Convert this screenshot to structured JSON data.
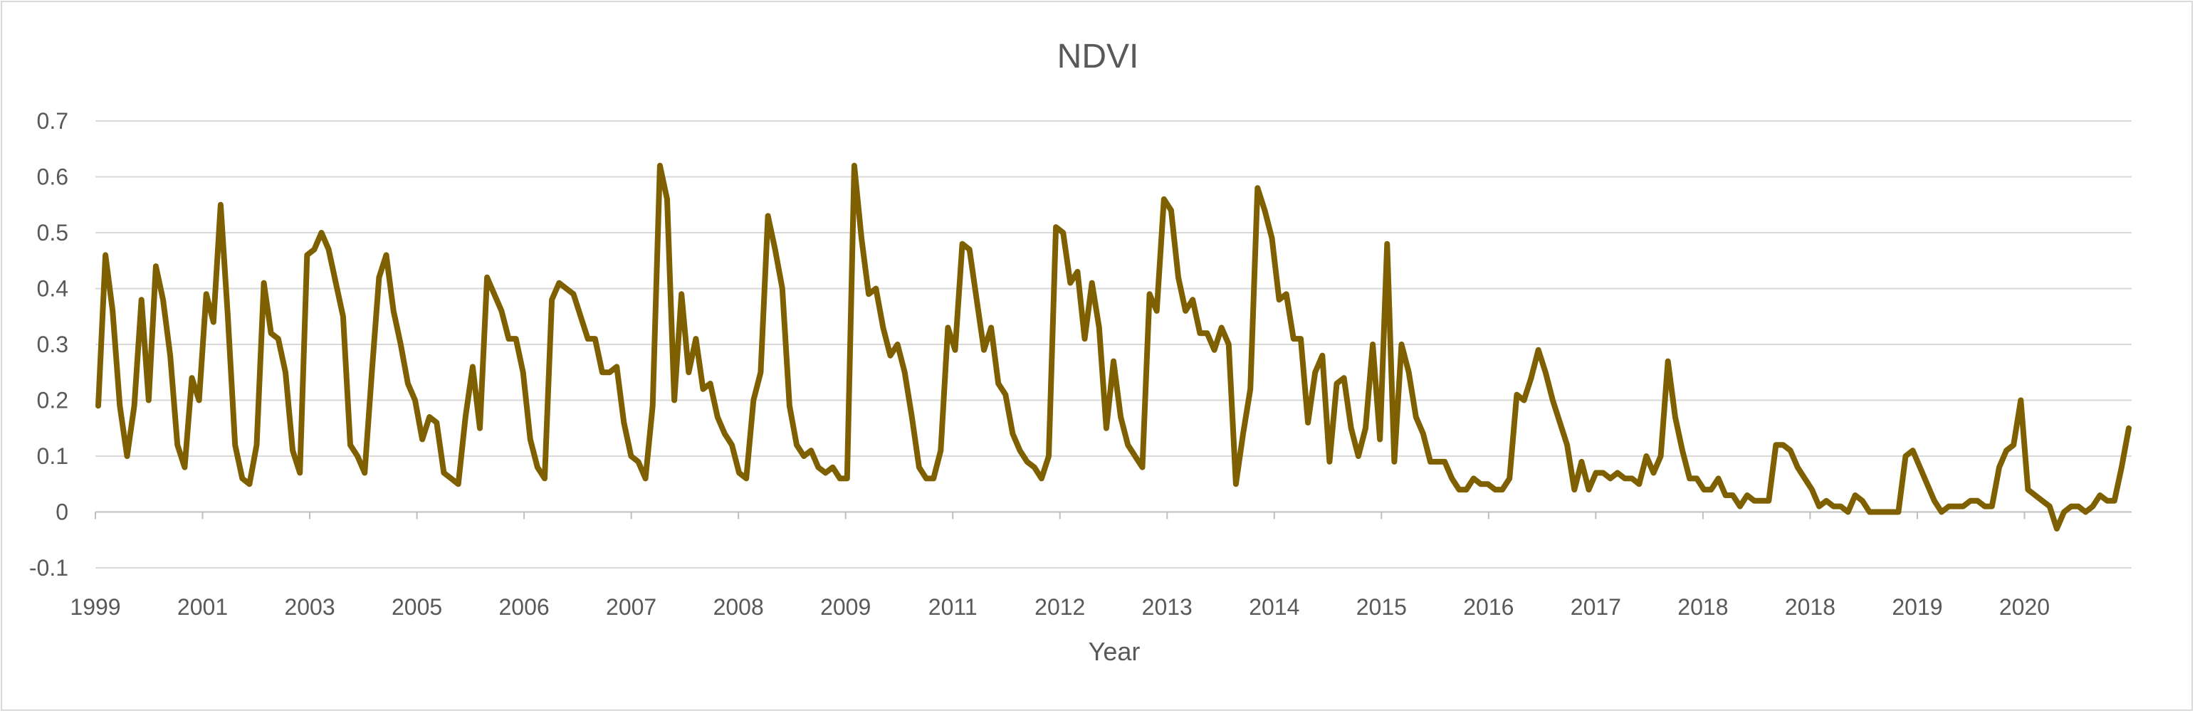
{
  "chart_data": {
    "type": "line",
    "title": "NDVI",
    "xlabel": "Year",
    "ylabel": "",
    "ylim": [
      -0.1,
      0.7
    ],
    "yticks": [
      -0.1,
      0,
      0.1,
      0.2,
      0.3,
      0.4,
      0.5,
      0.6,
      0.7
    ],
    "ytick_labels": [
      "-0.1",
      "0",
      "0.1",
      "0.2",
      "0.3",
      "0.4",
      "0.5",
      "0.6",
      "0.7"
    ],
    "xtick_labels": [
      "1999",
      "2001",
      "2003",
      "2005",
      "2006",
      "2007",
      "2008",
      "2009",
      "2011",
      "2012",
      "2013",
      "2014",
      "2015",
      "2016",
      "2017",
      "2018",
      "2018",
      "2019",
      "2020"
    ],
    "grid": true,
    "legend": "none",
    "line_color": "#7f6000",
    "series": [
      {
        "values": [
          0.19,
          0.46,
          0.36,
          0.19,
          0.1,
          0.19,
          0.38,
          0.2,
          0.44,
          0.38,
          0.28,
          0.12,
          0.08,
          0.24,
          0.2,
          0.39,
          0.34,
          0.55,
          0.35,
          0.12,
          0.06,
          0.05,
          0.12,
          0.41,
          0.32,
          0.31,
          0.25,
          0.11,
          0.07,
          0.46,
          0.47,
          0.5,
          0.47,
          0.41,
          0.35,
          0.12,
          0.1,
          0.07,
          0.25,
          0.42,
          0.46,
          0.36,
          0.3,
          0.23,
          0.2,
          0.13,
          0.17,
          0.16,
          0.07,
          0.06,
          0.05,
          0.17,
          0.26,
          0.15,
          0.42,
          0.39,
          0.36,
          0.31,
          0.31,
          0.25,
          0.13,
          0.08,
          0.06,
          0.38,
          0.41,
          0.4,
          0.39,
          0.35,
          0.31,
          0.31,
          0.25,
          0.25,
          0.26,
          0.16,
          0.1,
          0.09,
          0.06,
          0.19,
          0.62,
          0.56,
          0.2,
          0.39,
          0.25,
          0.31,
          0.22,
          0.23,
          0.17,
          0.14,
          0.12,
          0.07,
          0.06,
          0.2,
          0.25,
          0.53,
          0.47,
          0.4,
          0.19,
          0.12,
          0.1,
          0.11,
          0.08,
          0.07,
          0.08,
          0.06,
          0.06,
          0.62,
          0.49,
          0.39,
          0.4,
          0.33,
          0.28,
          0.3,
          0.25,
          0.17,
          0.08,
          0.06,
          0.06,
          0.11,
          0.33,
          0.29,
          0.48,
          0.47,
          0.38,
          0.29,
          0.33,
          0.23,
          0.21,
          0.14,
          0.11,
          0.09,
          0.08,
          0.06,
          0.1,
          0.51,
          0.5,
          0.41,
          0.43,
          0.31,
          0.41,
          0.33,
          0.15,
          0.27,
          0.17,
          0.12,
          0.1,
          0.08,
          0.39,
          0.36,
          0.56,
          0.54,
          0.42,
          0.36,
          0.38,
          0.32,
          0.32,
          0.29,
          0.33,
          0.3,
          0.05,
          0.14,
          0.22,
          0.58,
          0.54,
          0.49,
          0.38,
          0.39,
          0.31,
          0.31,
          0.16,
          0.25,
          0.28,
          0.09,
          0.23,
          0.24,
          0.15,
          0.1,
          0.15,
          0.3,
          0.13,
          0.48,
          0.09,
          0.3,
          0.25,
          0.17,
          0.14,
          0.09,
          0.09,
          0.09,
          0.06,
          0.04,
          0.04,
          0.06,
          0.05,
          0.05,
          0.04,
          0.04,
          0.06,
          0.21,
          0.2,
          0.24,
          0.29,
          0.25,
          0.2,
          0.16,
          0.12,
          0.04,
          0.09,
          0.04,
          0.07,
          0.07,
          0.06,
          0.07,
          0.06,
          0.06,
          0.05,
          0.1,
          0.07,
          0.1,
          0.27,
          0.17,
          0.11,
          0.06,
          0.06,
          0.04,
          0.04,
          0.06,
          0.03,
          0.03,
          0.01,
          0.03,
          0.02,
          0.02,
          0.02,
          0.12,
          0.12,
          0.11,
          0.08,
          0.06,
          0.04,
          0.01,
          0.02,
          0.01,
          0.01,
          0.0,
          0.03,
          0.02,
          0.0,
          0.0,
          0.0,
          0.0,
          0.0,
          0.1,
          0.11,
          0.08,
          0.05,
          0.02,
          0.0,
          0.01,
          0.01,
          0.01,
          0.02,
          0.02,
          0.01,
          0.01,
          0.08,
          0.11,
          0.12,
          0.2,
          0.04,
          0.03,
          0.02,
          0.01,
          -0.03,
          0.0,
          0.01,
          0.01,
          0.0,
          0.01,
          0.03,
          0.02,
          0.02,
          0.08,
          0.15
        ]
      }
    ]
  }
}
